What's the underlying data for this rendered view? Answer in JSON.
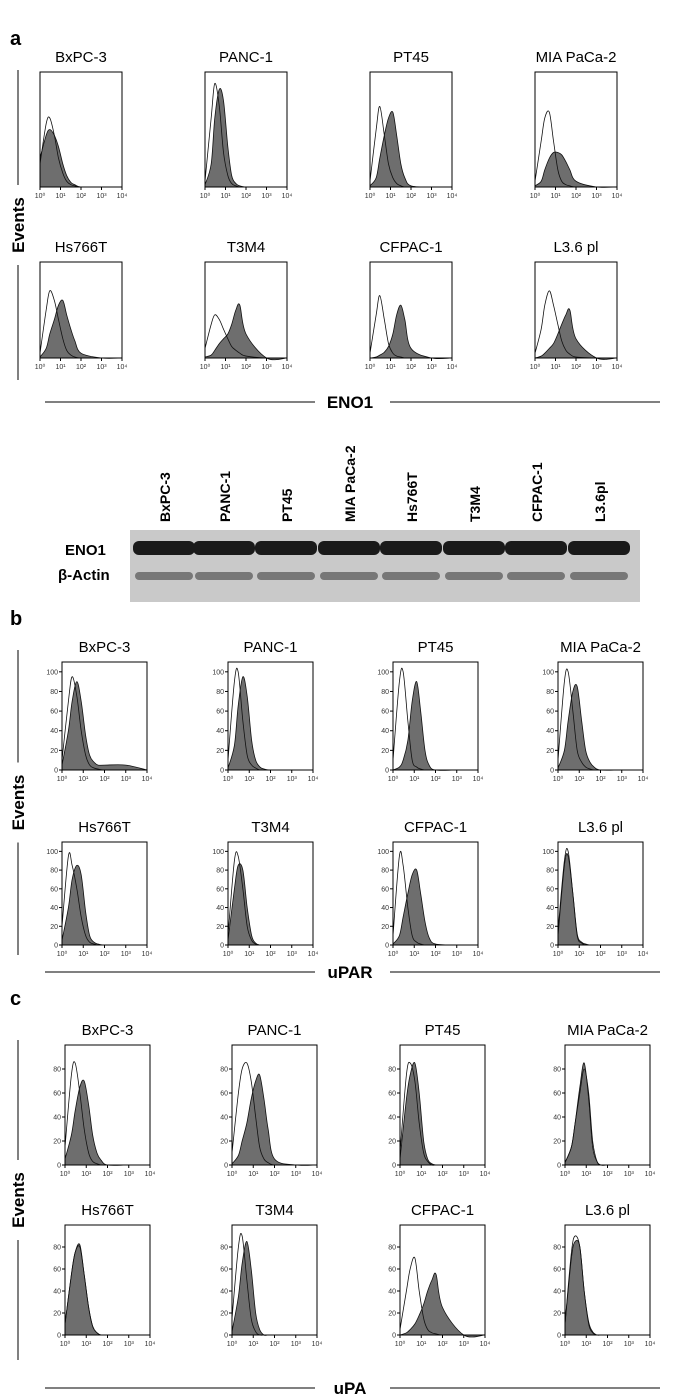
{
  "panels": [
    {
      "label": "a",
      "y_label": "Events",
      "x_label": "ENO1",
      "x": [
        1,
        2,
        3,
        5,
        8,
        13,
        20,
        32,
        50,
        100,
        1000,
        10000
      ],
      "xlim": [
        1,
        10000
      ],
      "log_x": true,
      "xticks": [
        {
          "value": 1,
          "label": "10⁰"
        },
        {
          "value": 10,
          "label": "10¹"
        },
        {
          "value": 100,
          "label": "10²"
        },
        {
          "value": 1000,
          "label": "10³"
        },
        {
          "value": 10000,
          "label": "10⁴"
        }
      ],
      "ylim": [
        0,
        100
      ],
      "charts": [
        {
          "title": "BxPC-3",
          "control": [
            20,
            55,
            60,
            45,
            25,
            12,
            5,
            2,
            1,
            0,
            0,
            0
          ],
          "stained": [
            25,
            45,
            50,
            45,
            35,
            20,
            10,
            4,
            2,
            0,
            0,
            0
          ]
        },
        {
          "title": "PANC-1",
          "control": [
            5,
            60,
            90,
            70,
            30,
            10,
            3,
            1,
            0,
            0,
            0,
            0
          ],
          "stained": [
            2,
            20,
            60,
            85,
            75,
            35,
            10,
            3,
            1,
            0,
            0,
            0
          ]
        },
        {
          "title": "PT45",
          "control": [
            5,
            50,
            70,
            45,
            20,
            8,
            3,
            1,
            0,
            0,
            0,
            0
          ],
          "stained": [
            1,
            8,
            25,
            45,
            60,
            65,
            45,
            20,
            8,
            1,
            0,
            0
          ]
        },
        {
          "title": "MIA PaCa-2",
          "control": [
            5,
            40,
            60,
            65,
            40,
            15,
            5,
            2,
            1,
            0,
            0,
            0
          ],
          "stained": [
            1,
            5,
            15,
            25,
            30,
            30,
            28,
            22,
            15,
            5,
            0,
            0
          ]
        },
        {
          "title": "Hs766T",
          "control": [
            5,
            50,
            70,
            60,
            40,
            20,
            8,
            3,
            1,
            0,
            0,
            0
          ],
          "stained": [
            1,
            10,
            25,
            40,
            55,
            60,
            45,
            30,
            18,
            5,
            0,
            0
          ]
        },
        {
          "title": "T3M4",
          "control": [
            10,
            35,
            45,
            40,
            30,
            20,
            12,
            8,
            5,
            2,
            0,
            0
          ],
          "stained": [
            1,
            3,
            8,
            15,
            20,
            25,
            35,
            50,
            55,
            25,
            0,
            0
          ]
        },
        {
          "title": "CFPAC-1",
          "control": [
            5,
            45,
            65,
            40,
            15,
            5,
            2,
            1,
            0,
            0,
            0,
            0
          ],
          "stained": [
            0,
            1,
            3,
            6,
            12,
            25,
            45,
            55,
            40,
            10,
            0,
            0
          ]
        },
        {
          "title": "L3.6 pl",
          "control": [
            5,
            30,
            55,
            70,
            55,
            35,
            18,
            8,
            4,
            1,
            0,
            0
          ],
          "stained": [
            0,
            2,
            5,
            10,
            15,
            25,
            35,
            45,
            50,
            20,
            0,
            0
          ]
        }
      ]
    },
    {
      "label": "b",
      "y_label": "Events",
      "x_label": "uPAR",
      "x": [
        1,
        2,
        3,
        5,
        8,
        13,
        20,
        32,
        50,
        100,
        1000,
        10000
      ],
      "xlim": [
        1,
        10000
      ],
      "log_x": true,
      "xticks": [
        {
          "value": 1,
          "label": "10⁰"
        },
        {
          "value": 10,
          "label": "10¹"
        },
        {
          "value": 100,
          "label": "10²"
        },
        {
          "value": 1000,
          "label": "10³"
        },
        {
          "value": 10000,
          "label": "10⁴"
        }
      ],
      "ylim": [
        0,
        110
      ],
      "yticks": [
        0,
        20,
        40,
        60,
        80,
        100
      ],
      "charts": [
        {
          "title": "BxPC-3",
          "control": [
            10,
            70,
            95,
            75,
            40,
            15,
            5,
            2,
            1,
            0,
            0,
            0
          ],
          "stained": [
            5,
            40,
            70,
            90,
            70,
            35,
            15,
            8,
            5,
            5,
            5,
            0
          ]
        },
        {
          "title": "PANC-1",
          "control": [
            10,
            90,
            100,
            50,
            15,
            5,
            2,
            0,
            0,
            0,
            0,
            0
          ],
          "stained": [
            2,
            25,
            65,
            95,
            75,
            30,
            10,
            3,
            1,
            0,
            0,
            0
          ]
        },
        {
          "title": "PT45",
          "control": [
            10,
            90,
            100,
            50,
            10,
            3,
            1,
            0,
            0,
            0,
            0,
            0
          ],
          "stained": [
            0,
            3,
            10,
            30,
            70,
            90,
            60,
            20,
            5,
            0,
            0,
            0
          ]
        },
        {
          "title": "MIA PaCa-2",
          "control": [
            10,
            90,
            100,
            60,
            20,
            8,
            3,
            1,
            0,
            0,
            0,
            0
          ],
          "stained": [
            2,
            20,
            50,
            80,
            85,
            50,
            20,
            8,
            3,
            0,
            0,
            0
          ]
        },
        {
          "title": "Hs766T",
          "control": [
            20,
            95,
            85,
            60,
            30,
            10,
            3,
            1,
            0,
            0,
            0,
            0
          ],
          "stained": [
            5,
            40,
            70,
            85,
            75,
            35,
            10,
            3,
            1,
            0,
            0,
            0
          ]
        },
        {
          "title": "T3M4",
          "control": [
            10,
            90,
            95,
            60,
            20,
            5,
            1,
            0,
            0,
            0,
            0,
            0
          ],
          "stained": [
            5,
            60,
            85,
            80,
            40,
            10,
            2,
            0,
            0,
            0,
            0,
            0
          ]
        },
        {
          "title": "CFPAC-1",
          "control": [
            10,
            95,
            85,
            40,
            10,
            3,
            1,
            0,
            0,
            0,
            0,
            0
          ],
          "stained": [
            1,
            10,
            30,
            55,
            75,
            80,
            55,
            25,
            8,
            1,
            0,
            0
          ]
        },
        {
          "title": "L3.6 pl",
          "control": [
            15,
            90,
            100,
            55,
            10,
            2,
            0,
            0,
            0,
            0,
            0,
            0
          ],
          "stained": [
            10,
            85,
            95,
            55,
            12,
            3,
            1,
            0,
            0,
            0,
            0,
            0
          ]
        }
      ]
    },
    {
      "label": "c",
      "y_label": "Events",
      "x_label": "uPA",
      "x": [
        1,
        2,
        3,
        5,
        8,
        13,
        20,
        32,
        50,
        100,
        1000,
        10000
      ],
      "xlim": [
        1,
        10000
      ],
      "log_x": true,
      "xticks": [
        {
          "value": 1,
          "label": "10⁰"
        },
        {
          "value": 10,
          "label": "10¹"
        },
        {
          "value": 100,
          "label": "10²"
        },
        {
          "value": 1000,
          "label": "10³"
        },
        {
          "value": 10000,
          "label": "10⁴"
        }
      ],
      "ylim": [
        0,
        100
      ],
      "yticks": [
        0,
        20,
        40,
        60,
        80
      ],
      "charts": [
        {
          "title": "BxPC-3",
          "control": [
            15,
            75,
            85,
            60,
            30,
            10,
            3,
            1,
            0,
            0,
            0,
            0
          ],
          "stained": [
            5,
            25,
            45,
            65,
            70,
            50,
            25,
            10,
            4,
            0,
            0,
            0
          ]
        },
        {
          "title": "PANC-1",
          "control": [
            10,
            60,
            80,
            85,
            70,
            40,
            15,
            5,
            2,
            0,
            0,
            0
          ],
          "stained": [
            1,
            8,
            20,
            35,
            55,
            70,
            75,
            55,
            30,
            5,
            0,
            0
          ]
        },
        {
          "title": "PT45",
          "control": [
            10,
            75,
            85,
            70,
            35,
            10,
            3,
            0,
            0,
            0,
            0,
            0
          ],
          "stained": [
            5,
            55,
            75,
            85,
            60,
            20,
            5,
            1,
            0,
            0,
            0,
            0
          ]
        },
        {
          "title": "MIA PaCa-2",
          "control": [
            2,
            15,
            35,
            60,
            80,
            60,
            20,
            3,
            0,
            0,
            0,
            0
          ],
          "stained": [
            2,
            15,
            35,
            65,
            85,
            55,
            15,
            3,
            0,
            0,
            0,
            0
          ]
        },
        {
          "title": "Hs766T",
          "control": [
            10,
            55,
            75,
            80,
            55,
            25,
            8,
            2,
            0,
            0,
            0,
            0
          ],
          "stained": [
            10,
            55,
            75,
            82,
            55,
            25,
            8,
            2,
            0,
            0,
            0,
            0
          ]
        },
        {
          "title": "T3M4",
          "control": [
            15,
            80,
            90,
            50,
            15,
            3,
            0,
            0,
            0,
            0,
            0,
            0
          ],
          "stained": [
            3,
            35,
            65,
            85,
            60,
            20,
            5,
            0,
            0,
            0,
            0,
            0
          ]
        },
        {
          "title": "CFPAC-1",
          "control": [
            5,
            40,
            60,
            70,
            40,
            15,
            5,
            2,
            1,
            0,
            0,
            0
          ],
          "stained": [
            0,
            2,
            5,
            10,
            18,
            28,
            40,
            50,
            55,
            25,
            0,
            0
          ]
        },
        {
          "title": "L3.6 pl",
          "control": [
            10,
            75,
            90,
            80,
            40,
            10,
            2,
            0,
            0,
            0,
            0,
            0
          ],
          "stained": [
            10,
            70,
            85,
            80,
            40,
            12,
            3,
            0,
            0,
            0,
            0,
            0
          ]
        }
      ]
    }
  ],
  "blot": {
    "lanes": [
      "BxPC-3",
      "PANC-1",
      "PT45",
      "MIA PaCa-2",
      "Hs766T",
      "T3M4",
      "CFPAC-1",
      "L3.6pl"
    ],
    "rows": [
      "ENO1",
      "β-Actin"
    ]
  }
}
